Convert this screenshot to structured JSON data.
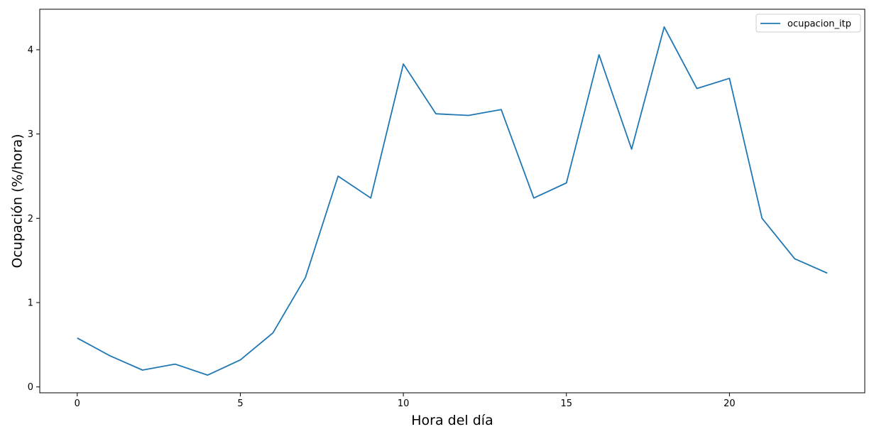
{
  "chart_data": {
    "type": "line",
    "title": "",
    "xlabel": "Hora del día",
    "ylabel": "Ocupación (%/hora)",
    "xlim": [
      -1.15,
      24.15
    ],
    "ylim": [
      -0.07,
      4.48
    ],
    "xticks": [
      0,
      5,
      10,
      15,
      20
    ],
    "yticks": [
      0,
      1,
      2,
      3,
      4
    ],
    "grid": false,
    "legend_position": "top-right",
    "series": [
      {
        "name": "ocupacion_itp",
        "color": "#1f77b4",
        "x": [
          0,
          1,
          2,
          3,
          4,
          5,
          6,
          7,
          8,
          9,
          10,
          11,
          12,
          13,
          14,
          15,
          16,
          17,
          18,
          19,
          20,
          21,
          22,
          23
        ],
        "values": [
          0.58,
          0.37,
          0.2,
          0.27,
          0.14,
          0.32,
          0.64,
          1.3,
          2.5,
          2.24,
          3.83,
          3.24,
          3.22,
          3.29,
          2.24,
          2.42,
          3.94,
          2.82,
          4.27,
          3.54,
          3.66,
          2.0,
          1.52,
          1.35
        ]
      }
    ]
  }
}
